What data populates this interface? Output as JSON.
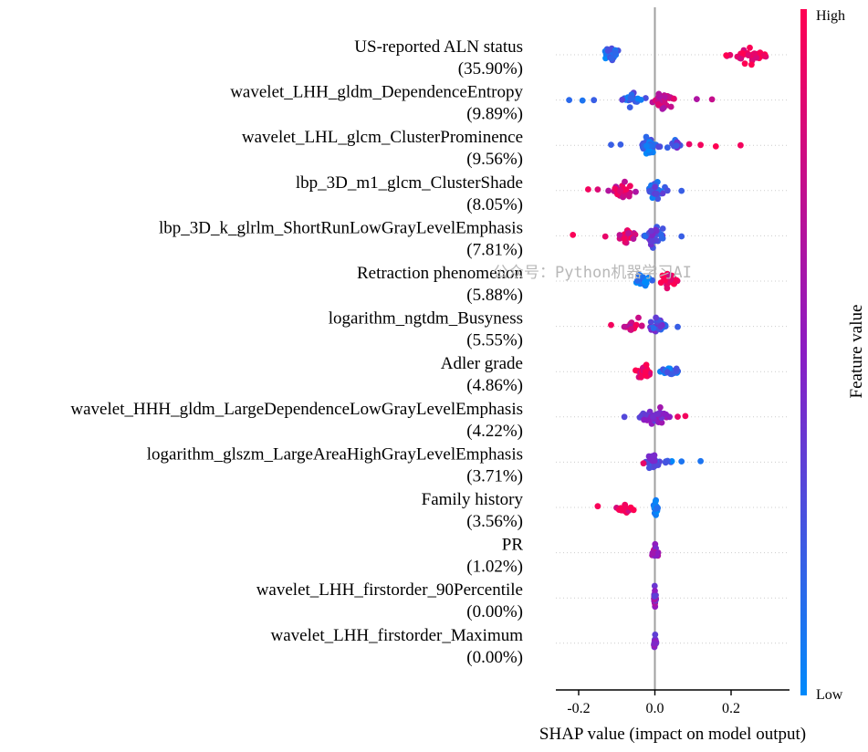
{
  "chart_data": {
    "type": "scatter",
    "subtype": "shap-beeswarm",
    "title": "",
    "xlabel": "SHAP value (impact on model output)",
    "xlim": [
      -0.26,
      0.36
    ],
    "xticks": [
      -0.2,
      0.0,
      0.2
    ],
    "xtick_labels": [
      "-0.2",
      "0.0",
      "0.2"
    ],
    "colorbar": {
      "label": "Feature value",
      "high": "High",
      "low": "Low",
      "low_color": "#008afb",
      "mid_color": "#8b1cc4",
      "high_color": "#ff0052"
    },
    "watermark": "公众号：Python机器学习AI",
    "features": [
      {
        "name": "US-reported ALN status",
        "importance": "(35.90%)",
        "clusters": [
          [
            -0.155,
            -0.075,
            0.12,
            40
          ],
          [
            0.17,
            0.32,
            0.97,
            28
          ]
        ],
        "outliers": []
      },
      {
        "name": "wavelet_LHH_gldm_DependenceEntropy",
        "importance": "(9.89%)",
        "clusters": [
          [
            -0.1,
            -0.02,
            0.2,
            18
          ],
          [
            -0.02,
            0.06,
            0.75,
            34
          ]
        ],
        "outliers": [
          [
            -0.225,
            0.15
          ],
          [
            -0.19,
            0.1
          ],
          [
            -0.16,
            0.2
          ],
          [
            0.11,
            0.65
          ],
          [
            0.15,
            0.75
          ]
        ]
      },
      {
        "name": "wavelet_LHL_glcm_ClusterProminence",
        "importance": "(9.56%)",
        "clusters": [
          [
            -0.05,
            0.02,
            0.15,
            36
          ],
          [
            0.02,
            0.08,
            0.3,
            12
          ]
        ],
        "outliers": [
          [
            -0.115,
            0.2
          ],
          [
            0.09,
            0.9
          ],
          [
            0.12,
            0.95
          ],
          [
            0.16,
            1.0
          ],
          [
            0.225,
            0.95
          ],
          [
            -0.09,
            0.2
          ]
        ]
      },
      {
        "name": "lbp_3D_m1_glcm_ClusterShade",
        "importance": "(8.05%)",
        "clusters": [
          [
            -0.13,
            -0.04,
            0.8,
            24
          ],
          [
            -0.03,
            0.04,
            0.2,
            32
          ]
        ],
        "outliers": [
          [
            -0.175,
            0.95
          ],
          [
            -0.15,
            0.85
          ],
          [
            0.07,
            0.2
          ]
        ]
      },
      {
        "name": "lbp_3D_k_glrlm_ShortRunLowGrayLevelEmphasis",
        "importance": "(7.81%)",
        "clusters": [
          [
            -0.11,
            -0.04,
            0.85,
            24
          ],
          [
            -0.04,
            0.04,
            0.3,
            34
          ]
        ],
        "outliers": [
          [
            -0.215,
            0.98
          ],
          [
            -0.13,
            0.9
          ],
          [
            0.07,
            0.2
          ]
        ]
      },
      {
        "name": "Retraction phenomenon",
        "importance": "(5.88%)",
        "clusters": [
          [
            -0.06,
            0.0,
            0.1,
            22
          ],
          [
            0.0,
            0.07,
            0.95,
            26
          ]
        ],
        "outliers": []
      },
      {
        "name": "logarithm_ngtdm_Busyness",
        "importance": "(5.55%)",
        "clusters": [
          [
            -0.09,
            -0.02,
            0.8,
            16
          ],
          [
            -0.03,
            0.04,
            0.3,
            28
          ]
        ],
        "outliers": [
          [
            -0.115,
            0.95
          ],
          [
            0.06,
            0.2
          ]
        ]
      },
      {
        "name": "Adler grade",
        "importance": "(4.86%)",
        "clusters": [
          [
            -0.06,
            0.0,
            0.95,
            28
          ],
          [
            0.0,
            0.08,
            0.1,
            22
          ]
        ],
        "outliers": []
      },
      {
        "name": "wavelet_HHH_gldm_LargeDependenceLowGrayLevelEmphasis",
        "importance": "(4.22%)",
        "clusters": [
          [
            -0.07,
            0.06,
            0.45,
            42
          ]
        ],
        "outliers": [
          [
            -0.08,
            0.3
          ],
          [
            0.08,
            0.95
          ],
          [
            0.06,
            0.9
          ]
        ]
      },
      {
        "name": "logarithm_glszm_LargeAreaHighGrayLevelEmphasis",
        "importance": "(3.71%)",
        "clusters": [
          [
            -0.03,
            0.02,
            0.35,
            28
          ],
          [
            0.02,
            0.05,
            0.15,
            6
          ]
        ],
        "outliers": [
          [
            0.07,
            0.1
          ],
          [
            0.12,
            0.1
          ],
          [
            -0.03,
            0.9
          ]
        ]
      },
      {
        "name": "Family history",
        "importance": "(3.56%)",
        "clusters": [
          [
            -0.11,
            -0.04,
            0.95,
            14
          ],
          [
            -0.005,
            0.01,
            0.05,
            26
          ]
        ],
        "outliers": [
          [
            -0.15,
            0.97
          ]
        ]
      },
      {
        "name": "PR",
        "importance": "(1.02%)",
        "clusters": [
          [
            -0.015,
            0.015,
            0.6,
            22
          ]
        ],
        "outliers": []
      },
      {
        "name": "wavelet_LHH_firstorder_90Percentile",
        "importance": "(0.00%)",
        "clusters": [
          [
            -0.004,
            0.004,
            0.5,
            28
          ]
        ],
        "outliers": []
      },
      {
        "name": "wavelet_LHH_firstorder_Maximum",
        "importance": "(0.00%)",
        "clusters": [
          [
            -0.004,
            0.004,
            0.45,
            28
          ]
        ],
        "outliers": []
      }
    ]
  }
}
